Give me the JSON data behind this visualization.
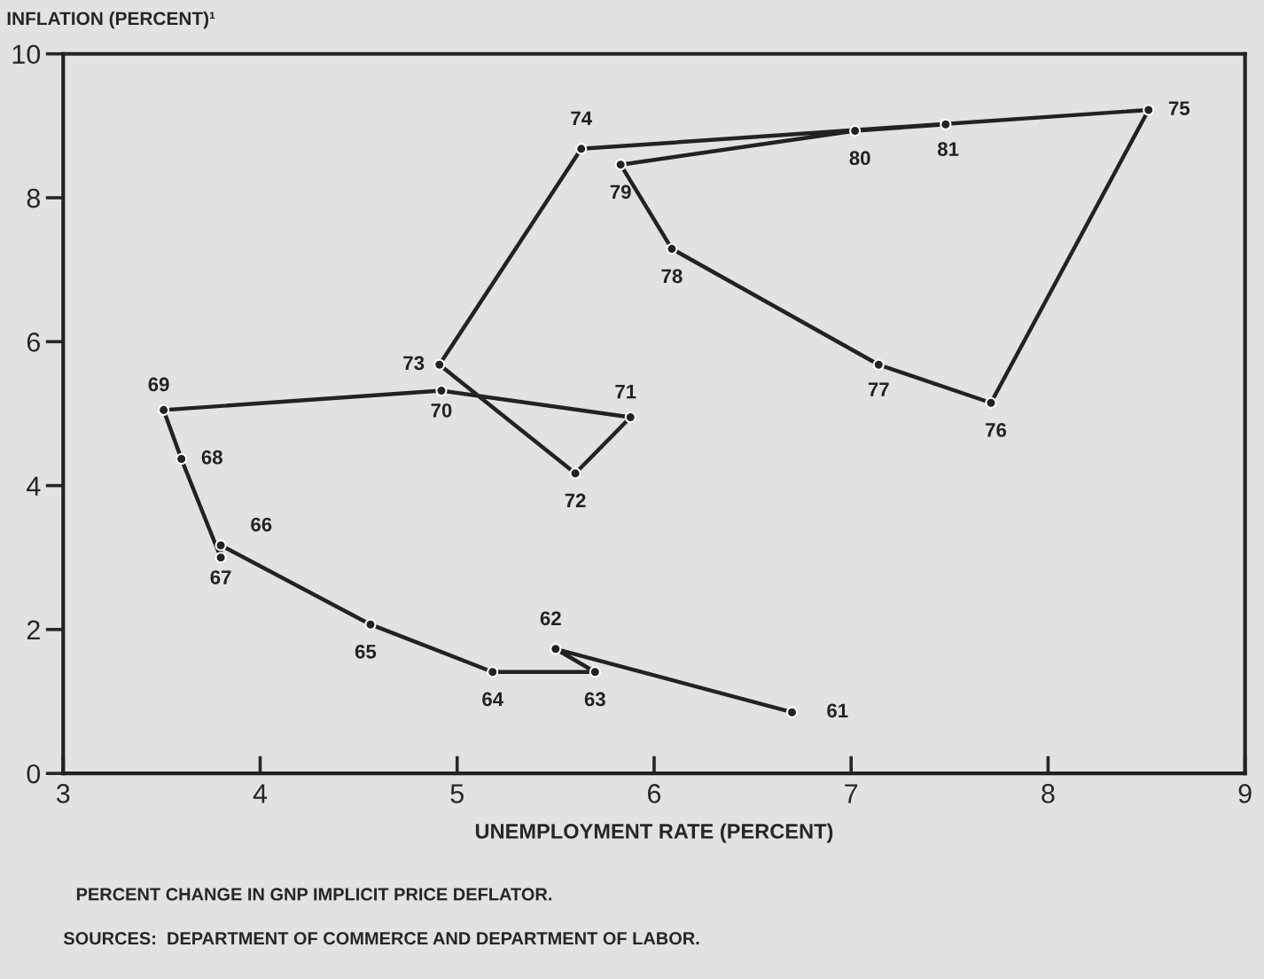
{
  "chart_data": {
    "type": "line",
    "xlabel": "UNEMPLOYMENT RATE (PERCENT)",
    "ylabel": "INFLATION (PERCENT)¹",
    "x": [
      6.7,
      5.5,
      5.7,
      5.18,
      4.56,
      3.8,
      3.8,
      3.6,
      3.51,
      4.92,
      5.88,
      5.6,
      4.91,
      5.63,
      8.51,
      7.71,
      7.14,
      6.09,
      5.83,
      7.02,
      7.48
    ],
    "series": [
      {
        "color": "#222222",
        "values": [
          0.85,
          1.73,
          1.41,
          1.41,
          2.07,
          3.17,
          3.0,
          4.37,
          5.05,
          5.32,
          4.95,
          4.17,
          5.68,
          8.68,
          9.22,
          5.15,
          5.68,
          7.29,
          8.46,
          8.93,
          9.02
        ]
      }
    ],
    "marker": "circle",
    "line_style": "solid",
    "grid": false,
    "legend": false,
    "xlim": [
      3,
      9
    ],
    "ylim": [
      0,
      10
    ],
    "xticks": [
      3,
      4,
      5,
      6,
      7,
      8,
      9
    ],
    "yticks": [
      0,
      2,
      4,
      6,
      8,
      10
    ],
    "annotations": [
      {
        "text": "61",
        "x": 6.7,
        "y": 0.85
      },
      {
        "text": "62",
        "x": 5.5,
        "y": 1.73
      },
      {
        "text": "63",
        "x": 5.7,
        "y": 1.41
      },
      {
        "text": "64",
        "x": 5.18,
        "y": 1.41
      },
      {
        "text": "65",
        "x": 4.56,
        "y": 2.07
      },
      {
        "text": "66",
        "x": 3.8,
        "y": 3.17
      },
      {
        "text": "67",
        "x": 3.8,
        "y": 3.0
      },
      {
        "text": "68",
        "x": 3.6,
        "y": 4.37
      },
      {
        "text": "69",
        "x": 3.51,
        "y": 5.05
      },
      {
        "text": "70",
        "x": 4.92,
        "y": 5.32
      },
      {
        "text": "71",
        "x": 5.88,
        "y": 4.95
      },
      {
        "text": "72",
        "x": 5.6,
        "y": 4.17
      },
      {
        "text": "73",
        "x": 4.91,
        "y": 5.68
      },
      {
        "text": "74",
        "x": 5.63,
        "y": 8.68
      },
      {
        "text": "75",
        "x": 8.51,
        "y": 9.22
      },
      {
        "text": "76",
        "x": 7.71,
        "y": 5.15
      },
      {
        "text": "77",
        "x": 7.14,
        "y": 5.68
      },
      {
        "text": "78",
        "x": 6.09,
        "y": 7.29
      },
      {
        "text": "79",
        "x": 5.83,
        "y": 8.46
      },
      {
        "text": "80",
        "x": 7.02,
        "y": 8.93
      },
      {
        "text": "81",
        "x": 7.48,
        "y": 9.02
      },
      "PERCENT CHANGE IN GNP IMPLICIT PRICE DEFLATOR.",
      "SOURCES:  DEPARTMENT OF COMMERCE AND DEPARTMENT OF LABOR."
    ]
  }
}
